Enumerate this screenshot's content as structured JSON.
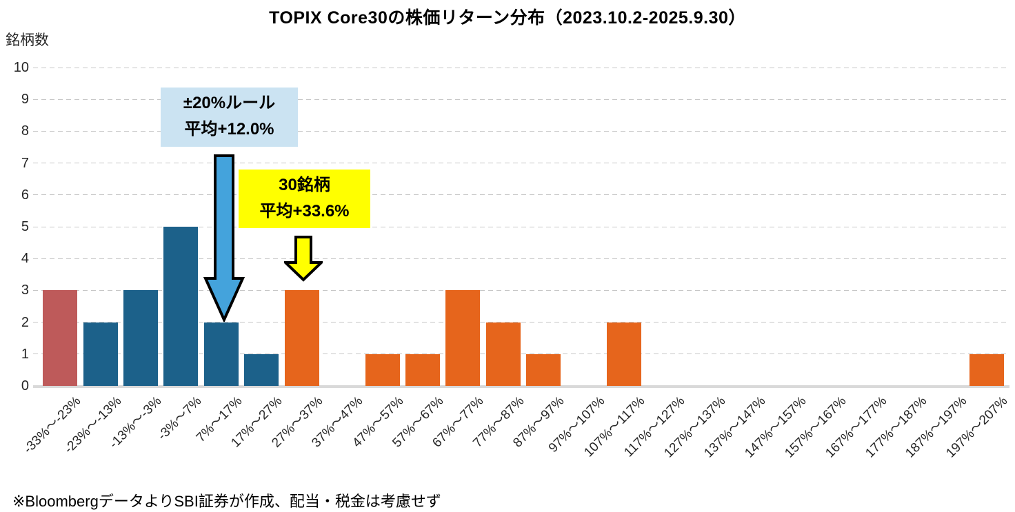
{
  "title": "TOPIX Core30の株価リターン分布（2023.10.2-2025.9.30）",
  "y_axis_unit": "銘柄数",
  "source_note": "※BloombergデータよりSBI証券が作成、配当・税金は考慮せず",
  "annotations": {
    "rule_box": {
      "line1": "±20%ルール",
      "line2": "平均+12.0%",
      "bg_color": "#CBE3F2",
      "arrow_fill": "#44A3DC",
      "points_to_category": "7%～17%"
    },
    "all_box": {
      "line1": "30銘柄",
      "line2": "平均+33.6%",
      "bg_color": "#FFFF00",
      "arrow_fill": "#FFFF00",
      "points_to_category": "27%～37%"
    }
  },
  "chart_data": {
    "type": "bar",
    "title": "TOPIX Core30の株価リターン分布（2023.10.2-2025.9.30）",
    "xlabel": "",
    "ylabel": "銘柄数",
    "ylim": [
      0,
      10
    ],
    "yticks": [
      0,
      1,
      2,
      3,
      4,
      5,
      6,
      7,
      8,
      9,
      10
    ],
    "grid": "horizontal-dashed",
    "legend_position": "none",
    "categories": [
      "-33%～-23%",
      "-23%～-13%",
      "-13%～-3%",
      "-3%～7%",
      "7%～17%",
      "17%～27%",
      "27%～37%",
      "37%～47%",
      "47%～57%",
      "57%～67%",
      "67%～77%",
      "77%～87%",
      "87%～97%",
      "97%～107%",
      "107%～117%",
      "117%～127%",
      "127%～137%",
      "137%～147%",
      "147%～157%",
      "157%～167%",
      "167%～177%",
      "177%～187%",
      "187%～197%",
      "197%～207%"
    ],
    "values": [
      3,
      2,
      3,
      5,
      2,
      1,
      3,
      0,
      1,
      1,
      3,
      2,
      1,
      0,
      2,
      0,
      0,
      0,
      0,
      0,
      0,
      0,
      0,
      1
    ],
    "bar_colors": [
      "#BE5A5A",
      "#1C618A",
      "#1C618A",
      "#1C618A",
      "#1C618A",
      "#1C618A",
      "#E6651C",
      "#E6651C",
      "#E6651C",
      "#E6651C",
      "#E6651C",
      "#E6651C",
      "#E6651C",
      "#E6651C",
      "#E6651C",
      "#E6651C",
      "#E6651C",
      "#E6651C",
      "#E6651C",
      "#E6651C",
      "#E6651C",
      "#E6651C",
      "#E6651C",
      "#E6651C"
    ]
  }
}
